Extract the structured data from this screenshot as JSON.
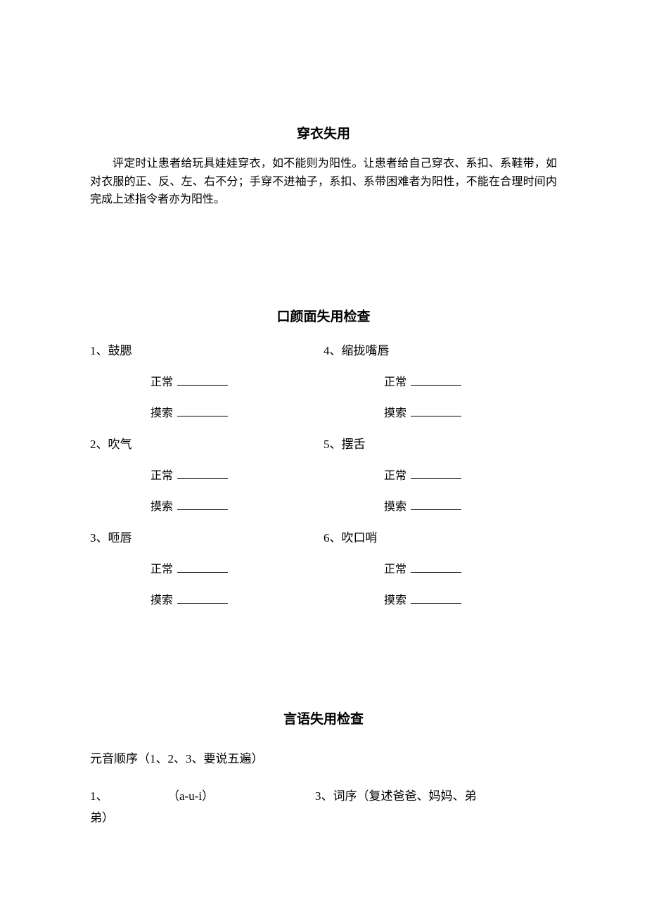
{
  "section1": {
    "title": "穿衣失用",
    "paragraph": "评定时让患者给玩具娃娃穿衣，如不能则为阳性。让患者给自己穿衣、系扣、系鞋带，如对衣服的正、反、左、右不分；手穿不进袖子，系扣、系带困难者为阳性，不能在合理时间内完成上述指令者亦为阳性。"
  },
  "section2": {
    "title": "口颜面失用检查",
    "left_items": [
      {
        "num": "1、",
        "label": "鼓腮",
        "field1": "正常",
        "field2": "摸索"
      },
      {
        "num": "2、",
        "label": "吹气",
        "field1": "正常",
        "field2": "摸索"
      },
      {
        "num": "3、",
        "label": "咂唇",
        "field1": "正常",
        "field2": "摸索"
      }
    ],
    "right_items": [
      {
        "num": "4、",
        "label": "缩拢嘴唇",
        "field1": "正常",
        "field2": "摸索"
      },
      {
        "num": "5、",
        "label": "摆舌",
        "field1": "正常",
        "field2": "摸索"
      },
      {
        "num": "6、",
        "label": "吹口哨",
        "field1": "正常",
        "field2": "摸索"
      }
    ]
  },
  "section3": {
    "title": "言语失用检查",
    "intro": "元音顺序（1、2、3、要说五遍）",
    "line1_left": "1、",
    "line1_mid": "（a-u-i）",
    "line1_right": "3、词序（复述爸爸、妈妈、弟",
    "line2": "弟）"
  }
}
